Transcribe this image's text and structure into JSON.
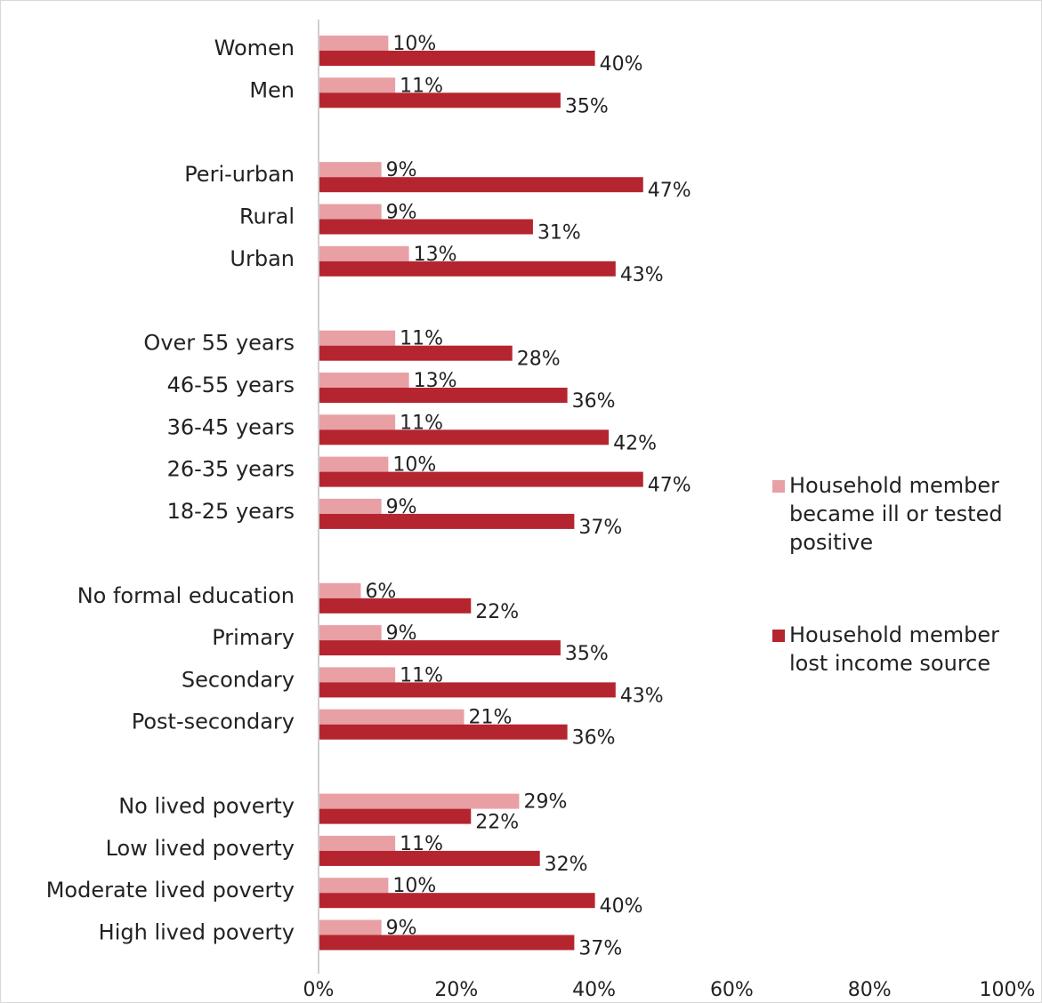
{
  "chart_data": {
    "type": "bar",
    "orientation": "horizontal",
    "title": "",
    "xlabel": "",
    "ylabel": "",
    "xlim": [
      0,
      100
    ],
    "x_ticks": [
      "0%",
      "20%",
      "40%",
      "60%",
      "80%",
      "100%"
    ],
    "grid": false,
    "legend_position": "right",
    "categories": [
      "Women",
      "Men",
      "Peri-urban",
      "Rural",
      "Urban",
      "Over 55 years",
      "46-55 years",
      "36-45 years",
      "26-35 years",
      "18-25 years",
      "No formal education",
      "Primary",
      "Secondary",
      "Post-secondary",
      "No lived poverty",
      "Low lived poverty",
      "Moderate lived poverty",
      "High lived poverty"
    ],
    "series": [
      {
        "name": "Household member became ill or tested positive",
        "color": "#e8a0a4",
        "values": [
          10,
          11,
          9,
          9,
          13,
          11,
          13,
          11,
          10,
          9,
          6,
          9,
          11,
          21,
          29,
          11,
          10,
          9
        ],
        "labels": [
          "10%",
          "11%",
          "9%",
          "9%",
          "13%",
          "11%",
          "13%",
          "11%",
          "10%",
          "9%",
          "6%",
          "9%",
          "11%",
          "21%",
          "29%",
          "11%",
          "10%",
          "9%"
        ]
      },
      {
        "name": "Household member lost income source",
        "color": "#b5252f",
        "values": [
          40,
          35,
          47,
          31,
          43,
          28,
          36,
          42,
          47,
          37,
          22,
          35,
          43,
          36,
          22,
          32,
          40,
          37
        ],
        "labels": [
          "40%",
          "35%",
          "47%",
          "31%",
          "43%",
          "28%",
          "36%",
          "42%",
          "47%",
          "37%",
          "22%",
          "35%",
          "43%",
          "36%",
          "22%",
          "32%",
          "40%",
          "37%"
        ]
      }
    ],
    "legend": [
      {
        "line1": "Household member",
        "line2": "became ill or tested",
        "line3": "positive"
      },
      {
        "line1": "Household member",
        "line2": "lost income source",
        "line3": ""
      }
    ]
  }
}
